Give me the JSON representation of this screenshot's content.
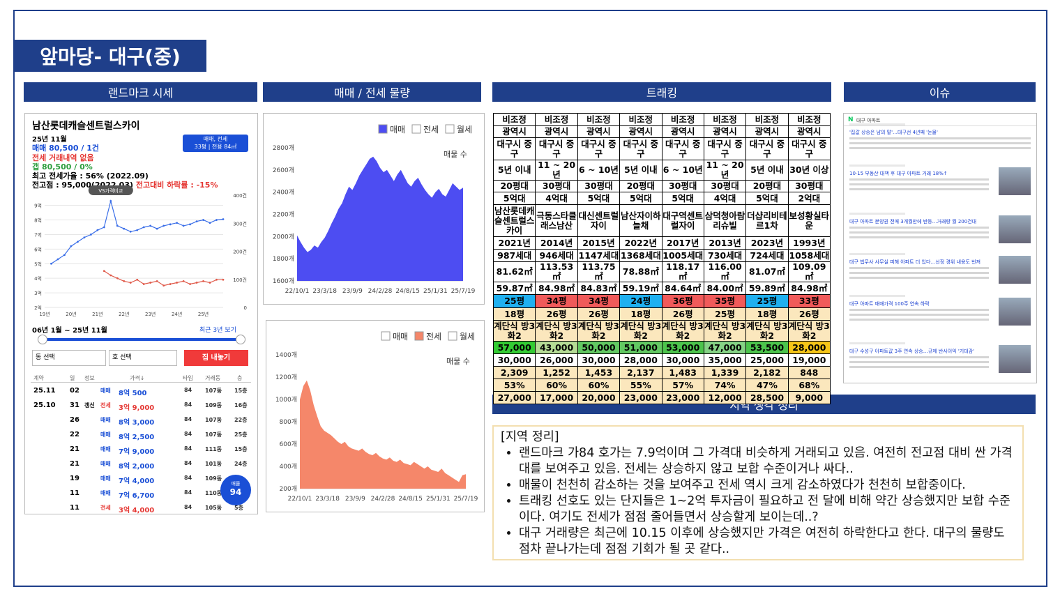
{
  "header": {
    "title": "앞마당- 대구(중)"
  },
  "sections": [
    "랜드마크 시세",
    "매매 / 전세 물량",
    "트래킹",
    "이슈",
    "지역 생각 정리"
  ],
  "landmark": {
    "name": "남산롯데캐슬센트럴스카이",
    "month": "25년 11월",
    "sale": "매매 80,500 / 1건",
    "jeonse": "전세 거래내역 없음",
    "gap": "갭 80,500 / 0%",
    "max_ratio": "최고 전세가율 : 56% (2022.09)",
    "peak": "전고점 : 95,000(2022.03)",
    "drop": " 전고대비 하락률 : -15%",
    "filter_type": "매매, 전세",
    "filter_size": "33평 | 전용 84㎡",
    "period": "06년 1월 ~ 25년 11월",
    "recent": "최근 3년 보기",
    "dong": "동 선택",
    "ho": "호 선택",
    "button": "집 내놓기",
    "columns": [
      "계약",
      "일",
      "정보",
      "가격↓",
      "타입",
      "거래동",
      "층"
    ],
    "rows": [
      [
        "25.11",
        "02",
        null,
        "매매",
        "8억 500",
        "84",
        "107동",
        "15층"
      ],
      [
        "25.10",
        "31",
        "갱신",
        "전세",
        "3억 9,000",
        "84",
        "109동",
        "16층"
      ],
      [
        null,
        "26",
        null,
        "매매",
        "8억 3,000",
        "84",
        "107동",
        "22층"
      ],
      [
        null,
        "22",
        null,
        "매매",
        "8억 2,500",
        "84",
        "107동",
        "25층"
      ],
      [
        null,
        "21",
        null,
        "매매",
        "7억 9,000",
        "84",
        "111동",
        "15층"
      ],
      [
        null,
        "21",
        null,
        "매매",
        "8억 2,000",
        "84",
        "101동",
        "24층"
      ],
      [
        null,
        "19",
        null,
        "매매",
        "7억 4,000",
        "84",
        "109동",
        null
      ],
      [
        null,
        "11",
        null,
        "매매",
        "7억 6,700",
        "84",
        "110동",
        null
      ],
      [
        null,
        "11",
        null,
        "전세",
        "3억 4,000",
        "84",
        "105동",
        "5층"
      ]
    ],
    "listing_label": "매물",
    "listing_count": 94
  },
  "chart_data": [
    {
      "type": "line",
      "annotation": "VS가격비교",
      "grid": true,
      "categories": [
        "19년",
        null,
        null,
        null,
        "20년",
        null,
        null,
        null,
        "21년",
        null,
        null,
        null,
        "22년",
        null,
        null,
        null,
        "23년",
        null,
        null,
        null,
        "24년",
        null,
        null,
        null,
        "25년",
        null,
        null,
        null
      ],
      "series": [
        {
          "color": "#3a6ee8",
          "values": [
            null,
            5.0,
            5.3,
            5.6,
            6.2,
            6.5,
            6.8,
            7.0,
            7.3,
            7.5,
            9.3,
            7.6,
            7.4,
            7.2,
            7.3,
            7.5,
            7.6,
            7.4,
            7.6,
            7.7,
            7.8,
            7.6,
            7.7,
            7.9,
            8.0,
            7.8,
            8.0,
            8.05
          ]
        },
        {
          "color": "#e05a4a",
          "values": [
            null,
            null,
            null,
            null,
            null,
            null,
            null,
            null,
            null,
            4.5,
            4.2,
            4.0,
            3.8,
            3.7,
            3.9,
            3.6,
            3.7,
            3.8,
            3.5,
            3.6,
            3.7,
            3.8,
            3.6,
            3.7,
            3.8,
            3.7,
            3.9,
            3.9
          ]
        }
      ],
      "ylim": [
        2,
        9.7
      ],
      "yticks": [
        {
          "value": 2,
          "label": "2억"
        },
        {
          "value": 3,
          "label": "3억"
        },
        {
          "value": 4,
          "label": "4억"
        },
        {
          "value": 5,
          "label": "5억"
        },
        {
          "value": 6,
          "label": "6억"
        },
        {
          "value": 7,
          "label": "7억"
        },
        {
          "value": 8,
          "label": "8억"
        },
        {
          "value": 9,
          "label": "9억"
        }
      ],
      "y2lim": [
        0,
        400
      ],
      "y2ticks": [
        0,
        {
          "value": 100,
          "label": "100건"
        },
        {
          "value": 200,
          "label": "200건"
        },
        {
          "value": 300,
          "label": "300건"
        },
        {
          "value": 400,
          "label": "400건"
        }
      ]
    },
    {
      "type": "area",
      "y_label": "매물 수",
      "grid": false,
      "legend_items": [
        {
          "name": "매매",
          "checked": true
        },
        {
          "name": "전세",
          "checked": false
        },
        {
          "name": "월세",
          "checked": false
        }
      ],
      "categories": [
        "22/10/1",
        null,
        null,
        null,
        null,
        null,
        null,
        null,
        "23/3/18",
        null,
        null,
        null,
        null,
        null,
        null,
        null,
        "23/9/9",
        null,
        null,
        null,
        null,
        null,
        null,
        null,
        "24/2/28",
        null,
        null,
        null,
        null,
        null,
        null,
        null,
        "24/8/15",
        null,
        null,
        null,
        null,
        null,
        null,
        null,
        "25/1/31",
        null,
        null,
        null,
        null,
        null,
        null,
        null,
        "25/7/19"
      ],
      "series": [
        {
          "color": "#4d4df2",
          "values": [
            2010,
            1950,
            1900,
            1860,
            1880,
            1920,
            1900,
            1950,
            1990,
            2050,
            2120,
            2180,
            2250,
            2300,
            2380,
            2450,
            2420,
            2480,
            2550,
            2600,
            2650,
            2700,
            2720,
            2680,
            2620,
            2580,
            2600,
            2550,
            2500,
            2560,
            2600,
            2540,
            2480,
            2450,
            2500,
            2530,
            2470,
            2420,
            2380,
            2350,
            2400,
            2430,
            2380,
            2360,
            2420,
            2480,
            2450,
            2420,
            2440
          ]
        }
      ],
      "ylim": [
        1600,
        2800
      ],
      "yticks": [
        {
          "value": 1600,
          "label": "1600개"
        },
        {
          "value": 1800,
          "label": "1800개"
        },
        {
          "value": 2000,
          "label": "2000개"
        },
        {
          "value": 2200,
          "label": "2200개"
        },
        {
          "value": 2400,
          "label": "2400개"
        },
        {
          "value": 2600,
          "label": "2600개"
        },
        {
          "value": 2800,
          "label": "2800개"
        }
      ]
    },
    {
      "type": "area",
      "y_label": "매물 수",
      "grid": false,
      "legend_items": [
        {
          "name": "매매",
          "checked": false
        },
        {
          "name": "전세",
          "checked": true
        },
        {
          "name": "월세",
          "checked": false
        }
      ],
      "categories": [
        "22/10/1",
        null,
        null,
        null,
        null,
        null,
        null,
        null,
        "23/3/18",
        null,
        null,
        null,
        null,
        null,
        null,
        null,
        "23/9/9",
        null,
        null,
        null,
        null,
        null,
        null,
        null,
        "24/2/28",
        null,
        null,
        null,
        null,
        null,
        null,
        null,
        "24/8/15",
        null,
        null,
        null,
        null,
        null,
        null,
        null,
        "25/1/31",
        null,
        null,
        null,
        null,
        null,
        null,
        null,
        "25/7/19"
      ],
      "series": [
        {
          "color": "#f5876a",
          "values": [
            1000,
            1120,
            1170,
            1080,
            950,
            850,
            760,
            720,
            700,
            680,
            650,
            620,
            600,
            620,
            580,
            560,
            550,
            540,
            560,
            530,
            510,
            500,
            520,
            490,
            470,
            460,
            480,
            450,
            440,
            460,
            430,
            420,
            410,
            440,
            420,
            400,
            380,
            400,
            370,
            360,
            350,
            380,
            340,
            320,
            300,
            280,
            260,
            320,
            330
          ]
        }
      ],
      "ylim": [
        200,
        1400
      ],
      "yticks": [
        {
          "value": 200,
          "label": "200개"
        },
        {
          "value": 400,
          "label": "400개"
        },
        {
          "value": 600,
          "label": "600개"
        },
        {
          "value": 800,
          "label": "800개"
        },
        {
          "value": 1000,
          "label": "1000개"
        },
        {
          "value": 1200,
          "label": "1200개"
        },
        {
          "value": 1400,
          "label": "1400개"
        }
      ]
    }
  ],
  "tracking": {
    "rows": [
      [
        "비조정",
        "비조정",
        "비조정",
        "비조정",
        "비조정",
        "비조정",
        "비조정",
        "비조정"
      ],
      [
        "광역시",
        "광역시",
        "광역시",
        "광역시",
        "광역시",
        "광역시",
        "광역시",
        "광역시"
      ],
      [
        "대구시 중구",
        "대구시 중구",
        "대구시 중구",
        "대구시 중구",
        "대구시 중구",
        "대구시 중구",
        "대구시 중구",
        "대구시 중구"
      ],
      [
        "5년 이내",
        "11 ~ 20년",
        "6 ~ 10년",
        "5년 이내",
        "6 ~ 10년",
        "11 ~ 20년",
        "5년 이내",
        "30년 이상"
      ],
      [
        "20평대",
        "30평대",
        "30평대",
        "20평대",
        "30평대",
        "30평대",
        "20평대",
        "30평대"
      ],
      [
        "5억대",
        "4억대",
        "5억대",
        "5억대",
        "5억대",
        "4억대",
        "5억대",
        "2억대"
      ],
      [
        "남산롯데캐슬센트럴스카이",
        "극동스타클래스남산",
        "대신센트럴자이",
        "남산자이하늘채",
        "대구역센트럴자이",
        "삼덕청아람리슈빌",
        "더샵리비테르1차",
        "보성황실타운"
      ],
      [
        "2021년",
        "2014년",
        "2015년",
        "2022년",
        "2017년",
        "2013년",
        "2023년",
        "1993년"
      ],
      [
        "987세대",
        "946세대",
        "1147세대",
        "1368세대",
        "1005세대",
        "730세대",
        "724세대",
        "1058세대"
      ],
      [
        "81.62㎡",
        "113.53㎡",
        "113.75㎡",
        "78.88㎡",
        "118.17㎡",
        "116.00㎡",
        "81.07㎡",
        "109.09㎡"
      ],
      [
        "59.87㎡",
        "84.98㎡",
        "84.83㎡",
        "59.19㎡",
        "84.64㎡",
        "84.00㎡",
        "59.89㎡",
        "84.98㎡"
      ],
      [
        "25평",
        "34평",
        "34평",
        "24평",
        "36평",
        "35평",
        "25평",
        "33평"
      ],
      [
        "18평",
        "26평",
        "26평",
        "18평",
        "26평",
        "25평",
        "18평",
        "26평"
      ],
      [
        "계단식 방3화2",
        "계단식 방3화2",
        "계단식 방3화2",
        "계단식 방3화2",
        "계단식 방3화2",
        "계단식 방3화2",
        "계단식 방3화2",
        "계단식 방3화2"
      ],
      [
        "57,000",
        "43,000",
        "50,000",
        "51,000",
        "53,000",
        "47,000",
        "53,500",
        "28,000"
      ],
      [
        "30,000",
        "26,000",
        "30,000",
        "28,000",
        "30,000",
        "35,000",
        "25,000",
        "19,000"
      ],
      [
        "2,309",
        "1,252",
        "1,453",
        "2,137",
        "1,483",
        "1,339",
        "2,182",
        "848"
      ],
      [
        "53%",
        "60%",
        "60%",
        "55%",
        "57%",
        "74%",
        "47%",
        "68%"
      ],
      [
        "27,000",
        "17,000",
        "20,000",
        "23,000",
        "23,000",
        "12,000",
        "28,500",
        "9,000"
      ]
    ]
  },
  "issue": {
    "brand": "N",
    "search": "대구 아파트",
    "headlines": [
      "'집값 상승은 남의 말'…대구선 4년째 '눈물'",
      "10·15 부동산 대책 후 대구 아파트 거래 18%↑",
      "대구 아파트 분양권 전매 3개월만에 반등…거래량 월 200건대",
      "대구 법무사 사무실 피해 아파트 더 있다…선정 경위 내용도 번져",
      "대구 아파트 매매가격 100주 연속 하락",
      "대구 수성구 아파트값 3주 연속 상승…규제 반사이익 '기대감'"
    ]
  },
  "summary": {
    "heading": "[지역 정리]",
    "bullets": [
      "랜드마크 가84 호가는 7.9억이며 그 가격대 비슷하게 거래되고 있음. 여전히 전고점 대비 싼 가격대를 보여주고 있음. 전세는 상승하지 않고 보합 수준이거나 싸다..",
      "매물이 천천히 감소하는 것을 보여주고 전세 역시 크게 감소하였다가 천천히 보합중이다.",
      "트래킹 선호도 있는 단지들은 1~2억 투자금이 필요하고 전 달에 비해 약간 상승했지만 보합 수준이다. 여기도 전세가 점점 줄어들면서 상승할게 보이는데..?",
      "대구 거래량은 최근에 10.15 이후에 상승했지만 가격은 여전히 하락한다고 한다. 대구의 물량도 점차 끝나가는데 점점 기회가 될 곳 같다.."
    ]
  }
}
